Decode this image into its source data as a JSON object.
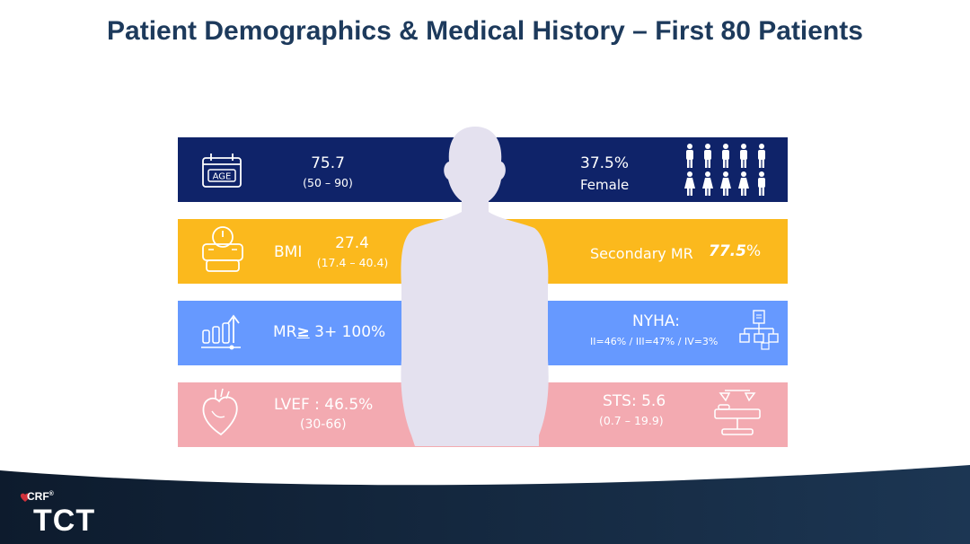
{
  "title": "Patient Demographics & Medical History – First 80 Patients",
  "colors": {
    "title": "#1d3a5c",
    "band_navy": "#0f2369",
    "band_yellow": "#fbb91d",
    "band_blue": "#6699ff",
    "band_pink": "#f3aab1",
    "silhouette": "#e4e1ef",
    "footer": "#112338",
    "highlight_red": "#d0313b"
  },
  "age": {
    "icon_label": "AGE",
    "value": "75.7",
    "range": "(50 – 90)"
  },
  "female": {
    "value": "37.5%",
    "label": "Female"
  },
  "bmi": {
    "label": "BMI",
    "value": "27.4",
    "range": "(17.4 – 40.4)"
  },
  "secondary_mr": {
    "label": "Secondary MR",
    "value": "77.5",
    "unit": "%"
  },
  "mr": {
    "prefix": "MR",
    "ge": "≥",
    "suffix": " 3+ 100%"
  },
  "nyha": {
    "label": "NYHA:",
    "values": "II=46% / III=47% / IV=3%"
  },
  "lvef": {
    "value": "LVEF : 46.5%",
    "range": "(30-66)"
  },
  "sts": {
    "value": "STS: 5.6",
    "range": "(0.7 – 19.9)"
  },
  "logo": {
    "crf": "CRF",
    "reg": "®",
    "tct": "TCT"
  }
}
